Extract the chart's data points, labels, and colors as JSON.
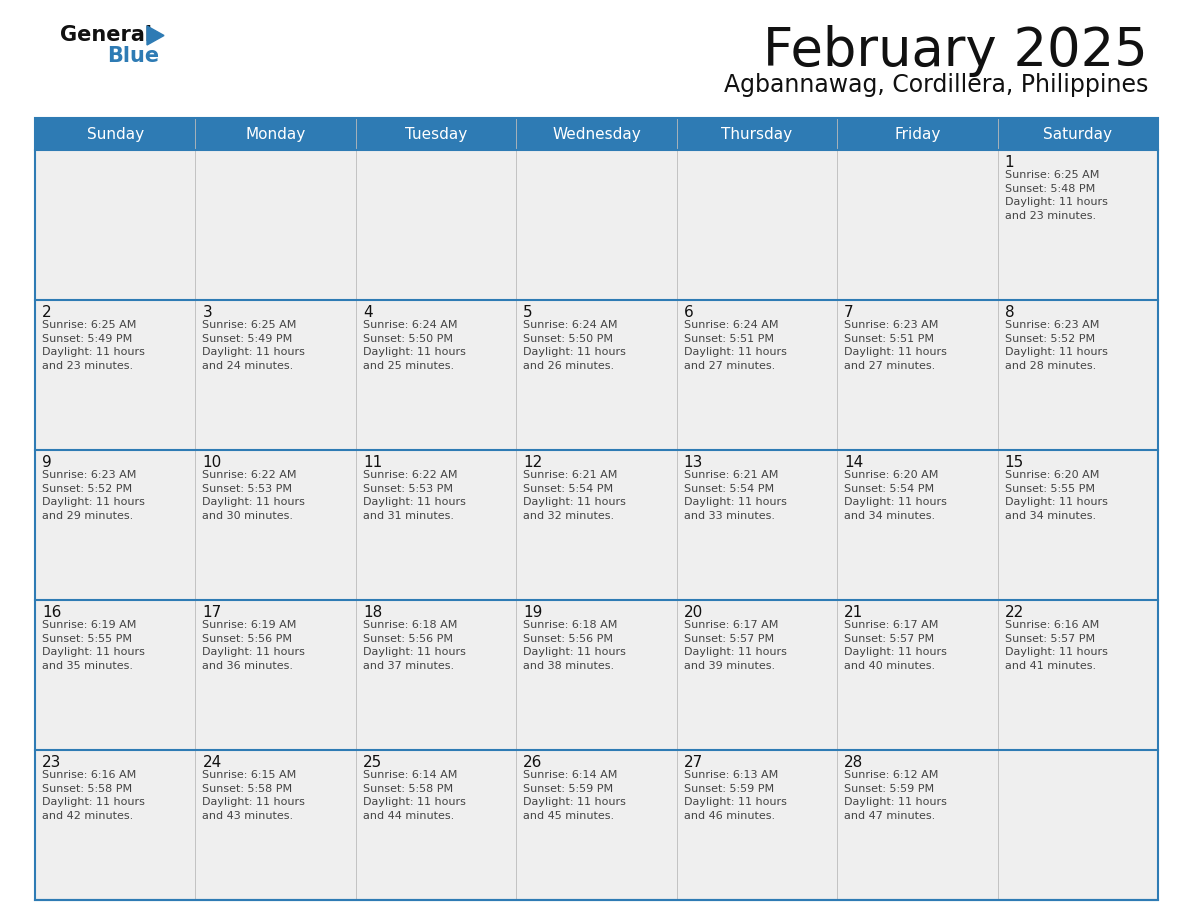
{
  "title": "February 2025",
  "subtitle": "Agbannawag, Cordillera, Philippines",
  "header_bg": "#2E7BB4",
  "header_text": "#FFFFFF",
  "cell_bg_light": "#EFEFEF",
  "cell_bg_white": "#FFFFFF",
  "day_headers": [
    "Sunday",
    "Monday",
    "Tuesday",
    "Wednesday",
    "Thursday",
    "Friday",
    "Saturday"
  ],
  "weeks": [
    [
      {
        "day": "",
        "info": ""
      },
      {
        "day": "",
        "info": ""
      },
      {
        "day": "",
        "info": ""
      },
      {
        "day": "",
        "info": ""
      },
      {
        "day": "",
        "info": ""
      },
      {
        "day": "",
        "info": ""
      },
      {
        "day": "1",
        "info": "Sunrise: 6:25 AM\nSunset: 5:48 PM\nDaylight: 11 hours\nand 23 minutes."
      }
    ],
    [
      {
        "day": "2",
        "info": "Sunrise: 6:25 AM\nSunset: 5:49 PM\nDaylight: 11 hours\nand 23 minutes."
      },
      {
        "day": "3",
        "info": "Sunrise: 6:25 AM\nSunset: 5:49 PM\nDaylight: 11 hours\nand 24 minutes."
      },
      {
        "day": "4",
        "info": "Sunrise: 6:24 AM\nSunset: 5:50 PM\nDaylight: 11 hours\nand 25 minutes."
      },
      {
        "day": "5",
        "info": "Sunrise: 6:24 AM\nSunset: 5:50 PM\nDaylight: 11 hours\nand 26 minutes."
      },
      {
        "day": "6",
        "info": "Sunrise: 6:24 AM\nSunset: 5:51 PM\nDaylight: 11 hours\nand 27 minutes."
      },
      {
        "day": "7",
        "info": "Sunrise: 6:23 AM\nSunset: 5:51 PM\nDaylight: 11 hours\nand 27 minutes."
      },
      {
        "day": "8",
        "info": "Sunrise: 6:23 AM\nSunset: 5:52 PM\nDaylight: 11 hours\nand 28 minutes."
      }
    ],
    [
      {
        "day": "9",
        "info": "Sunrise: 6:23 AM\nSunset: 5:52 PM\nDaylight: 11 hours\nand 29 minutes."
      },
      {
        "day": "10",
        "info": "Sunrise: 6:22 AM\nSunset: 5:53 PM\nDaylight: 11 hours\nand 30 minutes."
      },
      {
        "day": "11",
        "info": "Sunrise: 6:22 AM\nSunset: 5:53 PM\nDaylight: 11 hours\nand 31 minutes."
      },
      {
        "day": "12",
        "info": "Sunrise: 6:21 AM\nSunset: 5:54 PM\nDaylight: 11 hours\nand 32 minutes."
      },
      {
        "day": "13",
        "info": "Sunrise: 6:21 AM\nSunset: 5:54 PM\nDaylight: 11 hours\nand 33 minutes."
      },
      {
        "day": "14",
        "info": "Sunrise: 6:20 AM\nSunset: 5:54 PM\nDaylight: 11 hours\nand 34 minutes."
      },
      {
        "day": "15",
        "info": "Sunrise: 6:20 AM\nSunset: 5:55 PM\nDaylight: 11 hours\nand 34 minutes."
      }
    ],
    [
      {
        "day": "16",
        "info": "Sunrise: 6:19 AM\nSunset: 5:55 PM\nDaylight: 11 hours\nand 35 minutes."
      },
      {
        "day": "17",
        "info": "Sunrise: 6:19 AM\nSunset: 5:56 PM\nDaylight: 11 hours\nand 36 minutes."
      },
      {
        "day": "18",
        "info": "Sunrise: 6:18 AM\nSunset: 5:56 PM\nDaylight: 11 hours\nand 37 minutes."
      },
      {
        "day": "19",
        "info": "Sunrise: 6:18 AM\nSunset: 5:56 PM\nDaylight: 11 hours\nand 38 minutes."
      },
      {
        "day": "20",
        "info": "Sunrise: 6:17 AM\nSunset: 5:57 PM\nDaylight: 11 hours\nand 39 minutes."
      },
      {
        "day": "21",
        "info": "Sunrise: 6:17 AM\nSunset: 5:57 PM\nDaylight: 11 hours\nand 40 minutes."
      },
      {
        "day": "22",
        "info": "Sunrise: 6:16 AM\nSunset: 5:57 PM\nDaylight: 11 hours\nand 41 minutes."
      }
    ],
    [
      {
        "day": "23",
        "info": "Sunrise: 6:16 AM\nSunset: 5:58 PM\nDaylight: 11 hours\nand 42 minutes."
      },
      {
        "day": "24",
        "info": "Sunrise: 6:15 AM\nSunset: 5:58 PM\nDaylight: 11 hours\nand 43 minutes."
      },
      {
        "day": "25",
        "info": "Sunrise: 6:14 AM\nSunset: 5:58 PM\nDaylight: 11 hours\nand 44 minutes."
      },
      {
        "day": "26",
        "info": "Sunrise: 6:14 AM\nSunset: 5:59 PM\nDaylight: 11 hours\nand 45 minutes."
      },
      {
        "day": "27",
        "info": "Sunrise: 6:13 AM\nSunset: 5:59 PM\nDaylight: 11 hours\nand 46 minutes."
      },
      {
        "day": "28",
        "info": "Sunrise: 6:12 AM\nSunset: 5:59 PM\nDaylight: 11 hours\nand 47 minutes."
      },
      {
        "day": "",
        "info": ""
      }
    ]
  ],
  "logo_triangle_color": "#2E7BB4",
  "text_color_dark": "#111111",
  "line_color": "#2E7BB4",
  "cell_text_color": "#444444",
  "day_num_color": "#111111",
  "title_fontsize": 38,
  "subtitle_fontsize": 17,
  "header_fontsize": 11,
  "day_num_fontsize": 11,
  "cell_text_fontsize": 8.0
}
